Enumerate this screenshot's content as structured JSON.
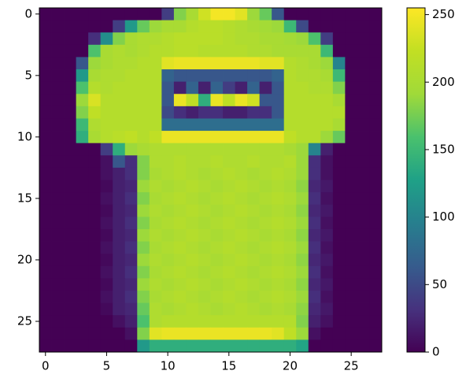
{
  "chart_data": {
    "type": "heatmap",
    "colormap": "viridis",
    "xlim": [
      -0.5,
      27.5
    ],
    "ylim": [
      27.5,
      -0.5
    ],
    "xticks": [
      0,
      5,
      10,
      15,
      20,
      25
    ],
    "yticks": [
      0,
      5,
      10,
      15,
      20,
      25
    ],
    "clim": [
      0,
      255
    ],
    "cticks": [
      0,
      50,
      100,
      150,
      200,
      250
    ],
    "z": [
      [
        0,
        0,
        0,
        0,
        0,
        0,
        0,
        0,
        0,
        0,
        40,
        180,
        200,
        230,
        250,
        250,
        240,
        190,
        170,
        60,
        0,
        0,
        0,
        0,
        0,
        0,
        0,
        0
      ],
      [
        0,
        0,
        0,
        0,
        0,
        0,
        40,
        120,
        170,
        190,
        200,
        200,
        210,
        215,
        215,
        210,
        205,
        200,
        195,
        190,
        150,
        50,
        0,
        0,
        0,
        0,
        0,
        0
      ],
      [
        0,
        0,
        0,
        0,
        30,
        110,
        180,
        200,
        205,
        205,
        210,
        215,
        215,
        215,
        215,
        210,
        205,
        205,
        200,
        200,
        195,
        190,
        160,
        40,
        0,
        0,
        0,
        0
      ],
      [
        0,
        0,
        0,
        0,
        160,
        200,
        205,
        200,
        205,
        210,
        210,
        215,
        215,
        210,
        210,
        210,
        210,
        205,
        205,
        200,
        200,
        200,
        200,
        150,
        0,
        0,
        0,
        0
      ],
      [
        0,
        0,
        0,
        60,
        190,
        200,
        205,
        205,
        210,
        210,
        240,
        245,
        245,
        245,
        245,
        245,
        245,
        245,
        240,
        240,
        210,
        205,
        200,
        190,
        100,
        0,
        0,
        0
      ],
      [
        0,
        0,
        0,
        120,
        200,
        205,
        205,
        210,
        210,
        210,
        70,
        60,
        60,
        60,
        60,
        60,
        60,
        60,
        60,
        70,
        210,
        205,
        205,
        200,
        150,
        0,
        0,
        0
      ],
      [
        0,
        0,
        0,
        160,
        210,
        205,
        210,
        210,
        210,
        210,
        60,
        20,
        70,
        20,
        70,
        40,
        20,
        70,
        20,
        60,
        210,
        210,
        205,
        205,
        180,
        0,
        0,
        0
      ],
      [
        0,
        0,
        0,
        190,
        235,
        210,
        210,
        210,
        210,
        210,
        60,
        245,
        220,
        140,
        245,
        220,
        245,
        230,
        60,
        60,
        210,
        210,
        210,
        210,
        200,
        0,
        0,
        0
      ],
      [
        0,
        0,
        0,
        180,
        220,
        210,
        210,
        210,
        210,
        210,
        50,
        30,
        20,
        30,
        30,
        20,
        20,
        30,
        30,
        60,
        210,
        210,
        210,
        210,
        210,
        0,
        0,
        0
      ],
      [
        0,
        0,
        0,
        150,
        205,
        210,
        210,
        210,
        210,
        210,
        80,
        80,
        80,
        80,
        80,
        80,
        80,
        80,
        80,
        80,
        210,
        210,
        210,
        210,
        200,
        0,
        0,
        0
      ],
      [
        0,
        0,
        0,
        140,
        200,
        210,
        215,
        220,
        210,
        220,
        245,
        245,
        245,
        245,
        245,
        245,
        245,
        245,
        245,
        245,
        220,
        210,
        210,
        190,
        170,
        0,
        0,
        0
      ],
      [
        0,
        0,
        0,
        0,
        0,
        40,
        140,
        190,
        200,
        205,
        205,
        205,
        205,
        205,
        205,
        205,
        205,
        205,
        205,
        205,
        200,
        190,
        100,
        20,
        0,
        0,
        0,
        0
      ],
      [
        0,
        0,
        0,
        0,
        0,
        10,
        60,
        30,
        180,
        205,
        205,
        210,
        205,
        205,
        210,
        205,
        205,
        210,
        205,
        205,
        210,
        190,
        30,
        10,
        0,
        0,
        0,
        0
      ],
      [
        0,
        0,
        0,
        0,
        0,
        10,
        20,
        30,
        180,
        200,
        205,
        210,
        205,
        200,
        205,
        210,
        205,
        200,
        205,
        210,
        205,
        190,
        30,
        10,
        0,
        0,
        0,
        0
      ],
      [
        0,
        0,
        0,
        0,
        0,
        5,
        20,
        25,
        190,
        205,
        200,
        205,
        210,
        205,
        200,
        205,
        210,
        205,
        200,
        205,
        200,
        185,
        25,
        15,
        0,
        0,
        0,
        0
      ],
      [
        0,
        0,
        0,
        0,
        0,
        10,
        20,
        30,
        180,
        200,
        205,
        210,
        205,
        200,
        205,
        210,
        205,
        200,
        205,
        210,
        205,
        190,
        30,
        10,
        0,
        0,
        0,
        0
      ],
      [
        0,
        0,
        0,
        0,
        0,
        5,
        20,
        25,
        190,
        205,
        200,
        205,
        210,
        205,
        200,
        205,
        210,
        205,
        200,
        205,
        200,
        185,
        25,
        15,
        0,
        0,
        0,
        0
      ],
      [
        0,
        0,
        0,
        0,
        0,
        10,
        20,
        30,
        180,
        200,
        205,
        210,
        205,
        200,
        205,
        210,
        205,
        200,
        205,
        210,
        205,
        190,
        30,
        10,
        0,
        0,
        0,
        0
      ],
      [
        0,
        0,
        0,
        0,
        0,
        5,
        20,
        25,
        190,
        205,
        200,
        205,
        210,
        205,
        200,
        205,
        210,
        205,
        200,
        205,
        200,
        185,
        25,
        15,
        0,
        0,
        0,
        0
      ],
      [
        0,
        0,
        0,
        0,
        0,
        10,
        20,
        30,
        180,
        200,
        205,
        210,
        205,
        200,
        205,
        210,
        205,
        200,
        205,
        210,
        205,
        190,
        30,
        10,
        0,
        0,
        0,
        0
      ],
      [
        0,
        0,
        0,
        0,
        0,
        5,
        20,
        25,
        190,
        205,
        200,
        205,
        210,
        205,
        200,
        205,
        210,
        205,
        200,
        205,
        200,
        185,
        25,
        15,
        0,
        0,
        0,
        0
      ],
      [
        0,
        0,
        0,
        0,
        0,
        10,
        20,
        30,
        180,
        200,
        205,
        210,
        205,
        200,
        205,
        210,
        205,
        200,
        205,
        210,
        205,
        190,
        30,
        10,
        0,
        0,
        0,
        0
      ],
      [
        0,
        0,
        0,
        0,
        0,
        5,
        20,
        25,
        190,
        205,
        200,
        205,
        210,
        205,
        200,
        205,
        210,
        205,
        200,
        205,
        200,
        185,
        25,
        15,
        0,
        0,
        0,
        0
      ],
      [
        0,
        0,
        0,
        0,
        0,
        10,
        20,
        30,
        180,
        200,
        205,
        210,
        205,
        200,
        205,
        210,
        205,
        200,
        205,
        210,
        205,
        190,
        30,
        10,
        0,
        0,
        0,
        0
      ],
      [
        0,
        0,
        0,
        0,
        0,
        5,
        20,
        25,
        170,
        205,
        200,
        205,
        210,
        205,
        200,
        205,
        210,
        205,
        200,
        205,
        200,
        185,
        25,
        15,
        0,
        0,
        0,
        0
      ],
      [
        0,
        0,
        0,
        0,
        0,
        0,
        10,
        20,
        160,
        205,
        210,
        210,
        210,
        210,
        210,
        210,
        210,
        210,
        210,
        210,
        210,
        180,
        20,
        10,
        0,
        0,
        0,
        0
      ],
      [
        0,
        0,
        0,
        0,
        0,
        0,
        0,
        10,
        180,
        240,
        245,
        245,
        245,
        245,
        245,
        245,
        245,
        245,
        245,
        240,
        220,
        190,
        10,
        0,
        0,
        0,
        0,
        0
      ],
      [
        0,
        0,
        0,
        0,
        0,
        0,
        0,
        0,
        120,
        140,
        140,
        140,
        140,
        140,
        140,
        140,
        140,
        140,
        140,
        140,
        140,
        130,
        0,
        0,
        0,
        0,
        0,
        0
      ]
    ]
  }
}
